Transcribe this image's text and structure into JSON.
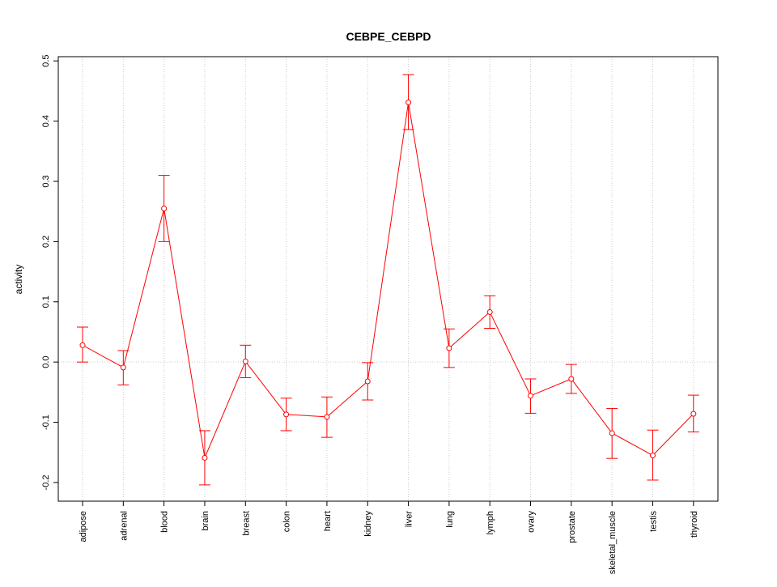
{
  "chart_data": {
    "type": "line",
    "title": "CEBPE_CEBPD",
    "xlabel": "",
    "ylabel": "activity",
    "categories": [
      "adipose",
      "adrenal",
      "blood",
      "brain",
      "breast",
      "colon",
      "heart",
      "kidney",
      "liver",
      "lung",
      "lymph",
      "ovary",
      "prostate",
      "skeletal_muscle",
      "testis",
      "thyroid"
    ],
    "series": [
      {
        "name": "activity",
        "values": [
          0.028,
          -0.009,
          0.255,
          -0.159,
          0.001,
          -0.087,
          -0.091,
          -0.032,
          0.431,
          0.023,
          0.083,
          -0.056,
          -0.028,
          -0.118,
          -0.155,
          -0.086
        ],
        "upper": [
          0.058,
          0.019,
          0.31,
          -0.114,
          0.028,
          -0.06,
          -0.058,
          -0.001,
          0.477,
          0.055,
          0.11,
          -0.028,
          -0.004,
          -0.077,
          -0.113,
          -0.055
        ],
        "lower": [
          0.0,
          -0.038,
          0.2,
          -0.204,
          -0.026,
          -0.114,
          -0.125,
          -0.063,
          0.386,
          -0.009,
          0.056,
          -0.085,
          -0.052,
          -0.16,
          -0.196,
          -0.116
        ]
      }
    ],
    "yticks": [
      -0.2,
      -0.1,
      0.0,
      0.1,
      0.2,
      0.3,
      0.4,
      0.5
    ],
    "ytick_labels": [
      "-0.2",
      "-0.1",
      "0.0",
      "0.1",
      "0.2",
      "0.3",
      "0.4",
      "0.5"
    ],
    "ylim": [
      -0.231,
      0.507
    ],
    "grid": true,
    "legend": "none",
    "colors": {
      "series": "#ff0000",
      "grid": "#cccccc",
      "axis": "#000000"
    }
  }
}
